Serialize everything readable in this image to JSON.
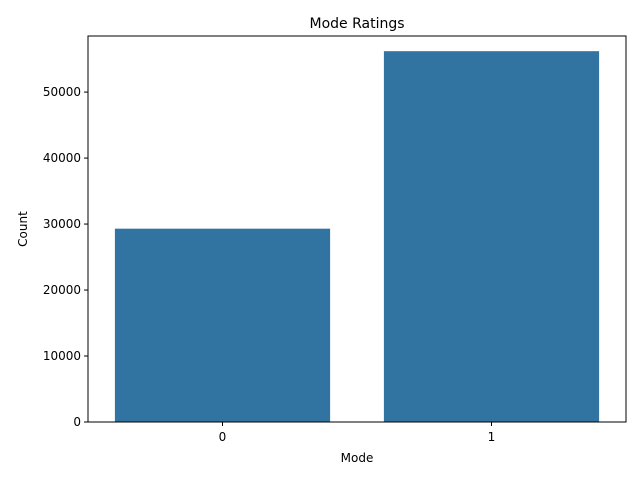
{
  "chart_data": {
    "type": "bar",
    "title": "Mode Ratings",
    "xlabel": "Mode",
    "ylabel": "Count",
    "categories": [
      "0",
      "1"
    ],
    "values": [
      29300,
      56200
    ],
    "ylim": [
      0,
      58500
    ],
    "yticks": [
      0,
      10000,
      20000,
      30000,
      40000,
      50000
    ],
    "ytick_labels": [
      "0",
      "10000",
      "20000",
      "30000",
      "40000",
      "50000"
    ],
    "grid": false,
    "bar_color": "#3274a1"
  }
}
